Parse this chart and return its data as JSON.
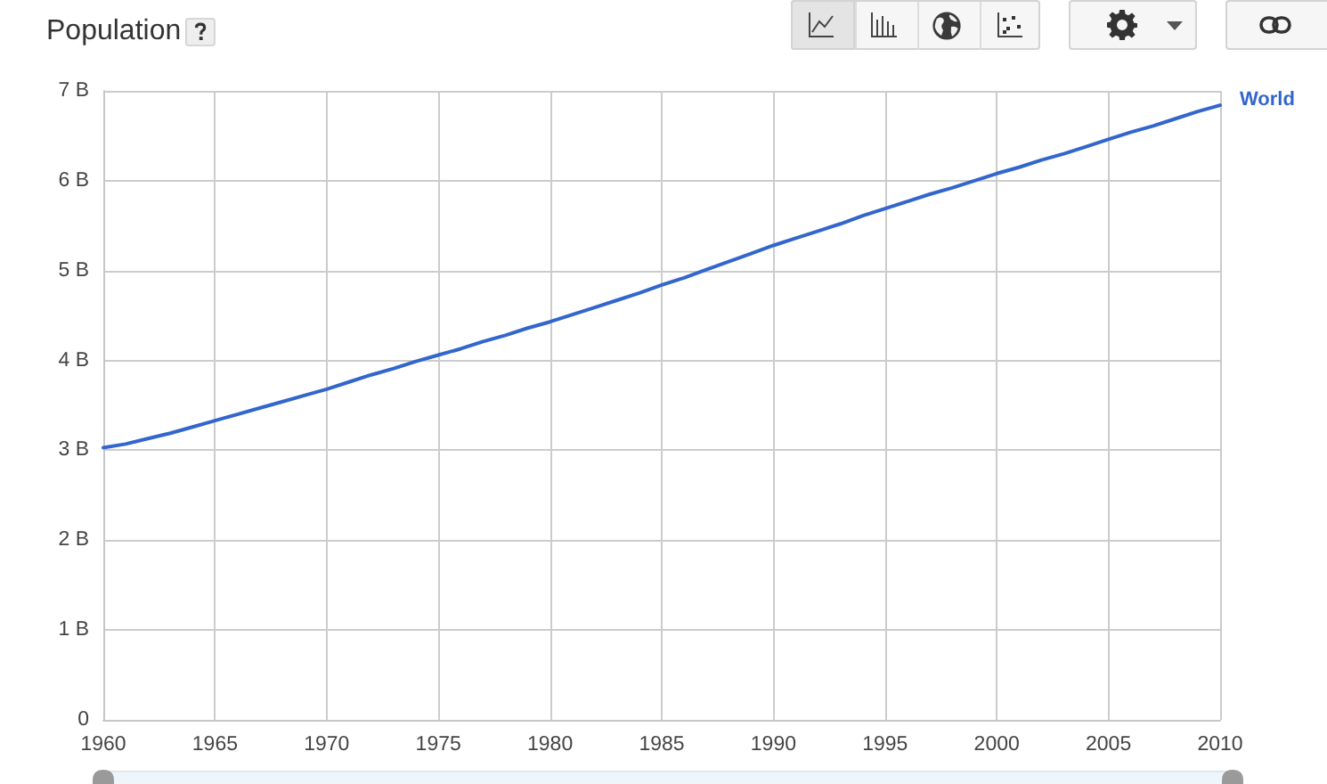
{
  "chart_data": {
    "type": "line",
    "title": "Population",
    "x": [
      1960,
      1961,
      1962,
      1963,
      1964,
      1965,
      1966,
      1967,
      1968,
      1969,
      1970,
      1971,
      1972,
      1973,
      1974,
      1975,
      1976,
      1977,
      1978,
      1979,
      1980,
      1981,
      1982,
      1983,
      1984,
      1985,
      1986,
      1987,
      1988,
      1989,
      1990,
      1991,
      1992,
      1993,
      1994,
      1995,
      1996,
      1997,
      1998,
      1999,
      2000,
      2001,
      2002,
      2003,
      2004,
      2005,
      2006,
      2007,
      2008,
      2009,
      2010
    ],
    "series": [
      {
        "name": "World",
        "color": "#3366cc",
        "values": [
          3.03,
          3.07,
          3.13,
          3.19,
          3.26,
          3.33,
          3.4,
          3.47,
          3.54,
          3.61,
          3.68,
          3.76,
          3.84,
          3.91,
          3.99,
          4.06,
          4.13,
          4.21,
          4.28,
          4.36,
          4.43,
          4.51,
          4.59,
          4.67,
          4.75,
          4.84,
          4.92,
          5.01,
          5.1,
          5.19,
          5.28,
          5.36,
          5.44,
          5.52,
          5.61,
          5.69,
          5.77,
          5.85,
          5.92,
          6.0,
          6.08,
          6.15,
          6.23,
          6.3,
          6.38,
          6.46,
          6.54,
          6.61,
          6.69,
          6.77,
          6.84
        ]
      }
    ],
    "xlim": [
      1960,
      2010
    ],
    "xticks": [
      1960,
      1965,
      1970,
      1975,
      1980,
      1985,
      1990,
      1995,
      2000,
      2005,
      2010
    ],
    "ylim": [
      0,
      7
    ],
    "yticks": [
      0,
      {
        "value": 1,
        "label": "1 B"
      },
      {
        "value": 2,
        "label": "2 B"
      },
      {
        "value": 3,
        "label": "3 B"
      },
      {
        "value": 4,
        "label": "4 B"
      },
      {
        "value": 5,
        "label": "5 B"
      },
      {
        "value": 6,
        "label": "6 B"
      },
      {
        "value": 7,
        "label": "7 B"
      }
    ],
    "grid": true,
    "marker": "none",
    "line_style": "solid"
  }
}
